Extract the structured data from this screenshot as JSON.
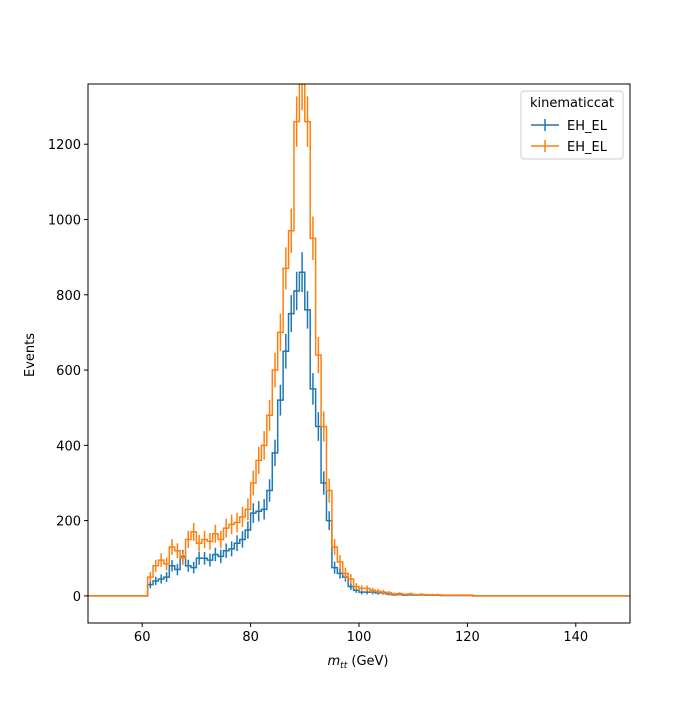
{
  "chart_data": {
    "type": "line",
    "title": "",
    "xlabel_main": "m",
    "xlabel_sub": "tt",
    "xlabel_unit": " (GeV)",
    "ylabel": "Events",
    "xlim": [
      50,
      150
    ],
    "ylim": [
      -72,
      1360
    ],
    "xticks": [
      60,
      80,
      100,
      120,
      140
    ],
    "yticks": [
      0,
      200,
      400,
      600,
      800,
      1000,
      1200
    ],
    "legend": {
      "title": "kinematiccat",
      "placement": "top-right"
    },
    "bin_edges": [
      61,
      62,
      63,
      64,
      65,
      66,
      67,
      68,
      69,
      70,
      71,
      72,
      73,
      74,
      75,
      76,
      77,
      78,
      79,
      80,
      81,
      82,
      83,
      84,
      85,
      86,
      87,
      88,
      89,
      90,
      91,
      92,
      93,
      94,
      95,
      96,
      97,
      98,
      99,
      100,
      101,
      102,
      103,
      104,
      105,
      106,
      107,
      108,
      109,
      110,
      111,
      112,
      113,
      114,
      115,
      116,
      117,
      118,
      119,
      120,
      121
    ],
    "series": [
      {
        "name": "EH_EL",
        "color": "#1f77b4",
        "values": [
          30,
          40,
          45,
          50,
          80,
          70,
          105,
          80,
          75,
          100,
          100,
          95,
          110,
          105,
          120,
          125,
          140,
          150,
          175,
          220,
          225,
          230,
          280,
          380,
          520,
          650,
          750,
          810,
          860,
          760,
          550,
          450,
          300,
          200,
          75,
          60,
          50,
          25,
          15,
          10,
          10,
          10,
          8,
          8,
          5,
          3,
          4,
          2,
          3,
          2,
          3,
          2,
          2,
          2,
          1,
          1,
          1,
          1,
          1,
          1
        ],
        "errors": [
          10,
          11,
          12,
          13,
          15,
          15,
          17,
          16,
          15,
          17,
          17,
          17,
          18,
          18,
          19,
          20,
          21,
          22,
          23,
          26,
          27,
          27,
          30,
          35,
          41,
          46,
          49,
          51,
          53,
          50,
          42,
          38,
          31,
          25,
          16,
          14,
          12,
          9,
          7,
          6,
          6,
          6,
          5,
          5,
          4,
          3,
          3,
          2,
          3,
          2,
          3,
          2,
          2,
          2,
          1,
          1,
          1,
          1,
          1,
          1
        ]
      },
      {
        "name": "EH_EL",
        "color": "#ff7f0e",
        "values": [
          50,
          80,
          95,
          85,
          130,
          120,
          100,
          150,
          170,
          140,
          150,
          145,
          165,
          150,
          180,
          190,
          195,
          210,
          230,
          300,
          360,
          400,
          480,
          600,
          700,
          870,
          970,
          1260,
          1360,
          1260,
          950,
          640,
          450,
          280,
          130,
          90,
          60,
          45,
          25,
          20,
          20,
          15,
          12,
          10,
          8,
          5,
          6,
          4,
          5,
          3,
          4,
          3,
          3,
          3,
          2,
          2,
          2,
          2,
          2,
          2
        ],
        "errors": [
          13,
          16,
          18,
          17,
          21,
          20,
          18,
          23,
          24,
          22,
          23,
          22,
          24,
          23,
          25,
          26,
          26,
          27,
          29,
          33,
          36,
          38,
          41,
          46,
          50,
          56,
          59,
          67,
          70,
          67,
          58,
          48,
          40,
          32,
          21,
          18,
          15,
          13,
          9,
          8,
          8,
          7,
          6,
          6,
          5,
          4,
          4,
          3,
          4,
          3,
          3,
          3,
          3,
          3,
          2,
          2,
          2,
          2,
          2,
          2
        ]
      }
    ]
  }
}
